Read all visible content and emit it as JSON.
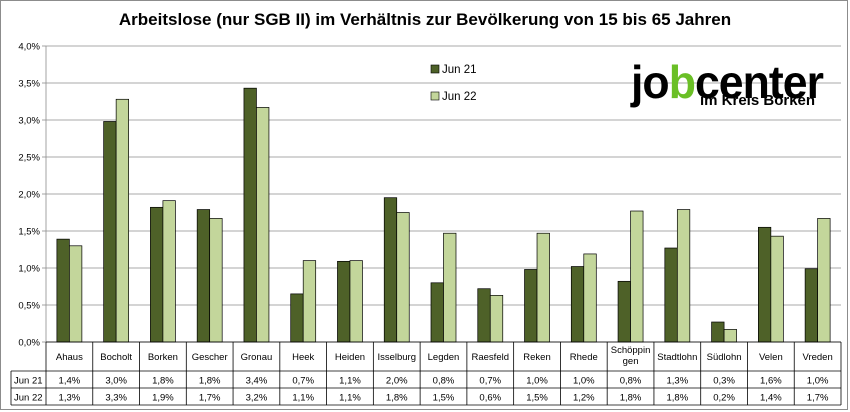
{
  "chart_data": {
    "type": "bar",
    "title": "Arbeitslose (nur SGB II) im Verhältnis zur Bevölkerung von 15 bis 65 Jahren",
    "categories": [
      "Ahaus",
      "Bocholt",
      "Borken",
      "Gescher",
      "Gronau",
      "Heek",
      "Heiden",
      "Isselburg",
      "Legden",
      "Raesfeld",
      "Reken",
      "Rhede",
      "Schöppin gen",
      "Stadtlohn",
      "Südlohn",
      "Velen",
      "Vreden"
    ],
    "series": [
      {
        "name": "Jun 21",
        "color": "#4e6128",
        "values": [
          1.39,
          2.98,
          1.82,
          1.79,
          3.43,
          0.65,
          1.09,
          1.95,
          0.8,
          0.72,
          0.98,
          1.02,
          0.82,
          1.27,
          0.27,
          1.55,
          0.99
        ],
        "labels": [
          "1,4%",
          "3,0%",
          "1,8%",
          "1,8%",
          "3,4%",
          "0,7%",
          "1,1%",
          "2,0%",
          "0,8%",
          "0,7%",
          "1,0%",
          "1,0%",
          "0,8%",
          "1,3%",
          "0,3%",
          "1,6%",
          "1,0%"
        ]
      },
      {
        "name": "Jun 22",
        "color": "#c3d69b",
        "values": [
          1.3,
          3.28,
          1.91,
          1.67,
          3.17,
          1.1,
          1.1,
          1.75,
          1.47,
          0.63,
          1.47,
          1.19,
          1.77,
          1.79,
          0.17,
          1.43,
          1.67
        ],
        "labels": [
          "1,3%",
          "3,3%",
          "1,9%",
          "1,7%",
          "3,2%",
          "1,1%",
          "1,1%",
          "1,8%",
          "1,5%",
          "0,6%",
          "1,5%",
          "1,2%",
          "1,8%",
          "1,8%",
          "0,2%",
          "1,4%",
          "1,7%"
        ]
      }
    ],
    "ylim": [
      0,
      4.0
    ],
    "yticks": [
      0,
      0.5,
      1.0,
      1.5,
      2.0,
      2.5,
      3.0,
      3.5,
      4.0
    ],
    "ytick_labels": [
      "0,0%",
      "0,5%",
      "1,0%",
      "1,5%",
      "2,0%",
      "2,5%",
      "3,0%",
      "3,5%",
      "4,0%"
    ],
    "xlabel": "",
    "ylabel": "",
    "grid": true,
    "legend_position": "top-center",
    "data_table": true
  },
  "logo": {
    "text_main": "jobcenter",
    "text_sub": "im Kreis Borken",
    "accent_color": "#6abf26"
  }
}
